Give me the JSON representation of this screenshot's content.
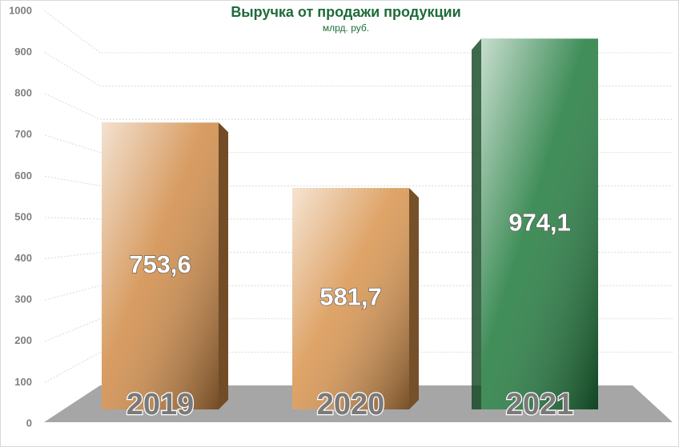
{
  "chart_data": {
    "type": "bar3d",
    "title": "Выручка от продажи продукции",
    "subtitle": "млрд. руб.",
    "categories": [
      "2019",
      "2020",
      "2021"
    ],
    "values": [
      753.6,
      581.7,
      974.1
    ],
    "value_labels": [
      "753,6",
      "581,7",
      "974,1"
    ],
    "colors": [
      "#d08a45",
      "#d8934c",
      "#1f7a3c"
    ],
    "ylim": [
      0,
      1000
    ],
    "yticks": [
      0,
      100,
      200,
      300,
      400,
      500,
      600,
      700,
      800,
      900,
      1000
    ],
    "grid": true
  }
}
